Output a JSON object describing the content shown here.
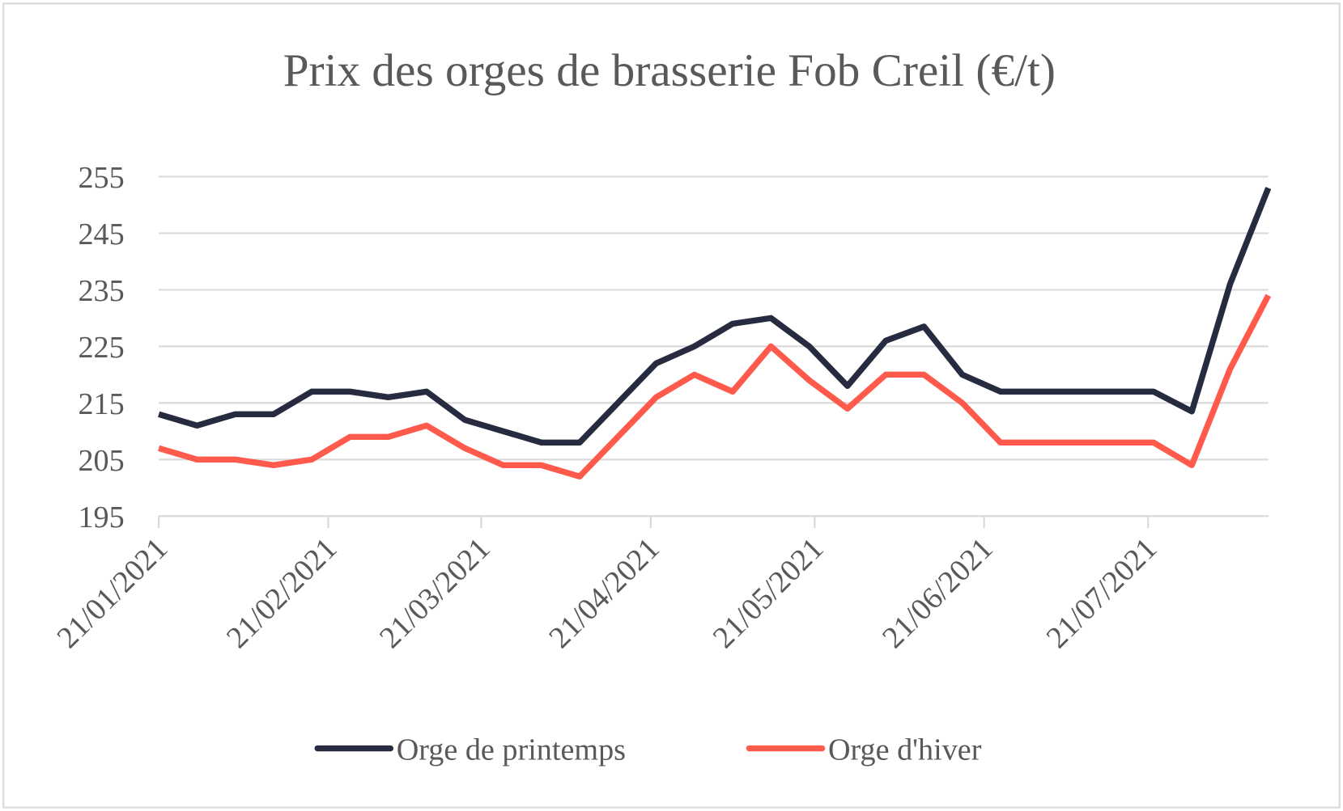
{
  "chart_data": {
    "type": "line",
    "title": "Prix des orges de brasserie Fob Creil (€/t)",
    "x": [
      "21/01/2021",
      "28/01/2021",
      "04/02/2021",
      "11/02/2021",
      "18/02/2021",
      "25/02/2021",
      "04/03/2021",
      "11/03/2021",
      "18/03/2021",
      "25/03/2021",
      "01/04/2021",
      "08/04/2021",
      "15/04/2021",
      "22/04/2021",
      "29/04/2021",
      "06/05/2021",
      "13/05/2021",
      "20/05/2021",
      "27/05/2021",
      "03/06/2021",
      "10/06/2021",
      "17/06/2021",
      "24/06/2021",
      "01/07/2021",
      "08/07/2021",
      "15/07/2021",
      "22/07/2021",
      "29/07/2021",
      "05/08/2021",
      "12/08/2021"
    ],
    "series": [
      {
        "name": "Orge de printemps",
        "color": "#262b3f",
        "values": [
          213,
          211,
          213,
          213,
          217,
          217,
          216,
          217,
          212,
          210,
          208,
          208,
          215,
          222,
          225,
          229,
          230,
          225,
          218,
          226,
          228.5,
          220,
          217,
          217,
          217,
          217,
          217,
          213.5,
          236,
          253
        ]
      },
      {
        "name": "Orge d'hiver",
        "color": "#ff5a4b",
        "values": [
          207,
          205,
          205,
          204,
          205,
          209,
          209,
          211,
          207,
          204,
          204,
          202,
          209,
          216,
          220,
          217,
          225,
          219,
          214,
          220,
          220,
          215,
          208,
          208,
          208,
          208,
          208,
          204,
          221,
          234
        ]
      }
    ],
    "xlim": [
      "21/01/2021",
      "12/08/2021"
    ],
    "xticks": [
      "21/01/2021",
      "21/02/2021",
      "21/03/2021",
      "21/04/2021",
      "21/05/2021",
      "21/06/2021",
      "21/07/2021"
    ],
    "ylim": [
      195,
      255
    ],
    "yticks": [
      195,
      205,
      215,
      225,
      235,
      245,
      255
    ],
    "grid": true,
    "legend": "bottom"
  }
}
